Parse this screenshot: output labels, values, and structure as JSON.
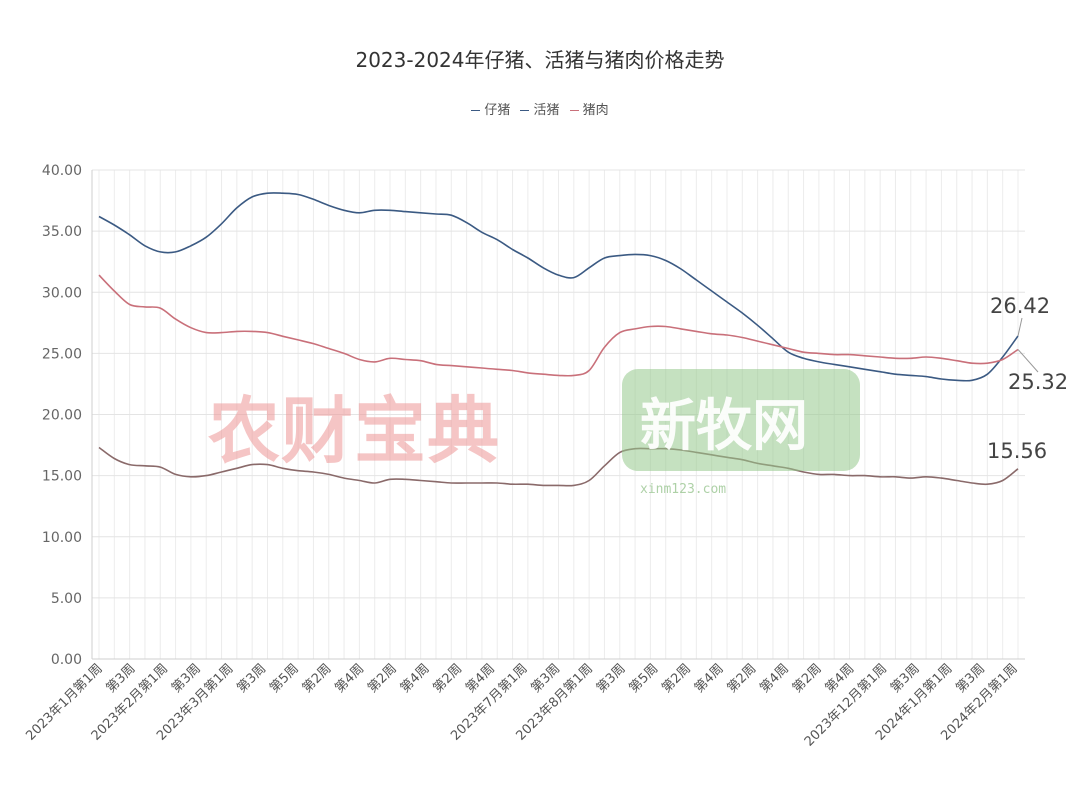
{
  "chart_data": {
    "type": "line",
    "title": "2023-2024年仔猪、活猪与猪肉价格走势",
    "legend": [
      "仔猪",
      "活猪",
      "猪肉"
    ],
    "legend_position": "top-center",
    "grid": true,
    "ylim": [
      0,
      40
    ],
    "y_ticks": [
      "0.00",
      "5.00",
      "10.00",
      "15.00",
      "20.00",
      "25.00",
      "30.00",
      "35.00",
      "40.00"
    ],
    "x_tick_labels": [
      "2023年1月第1周",
      "第3周",
      "2023年2月第1周",
      "第3周",
      "2023年3月第1周",
      "第3周",
      "第5周",
      "第2周",
      "第4周",
      "第2周",
      "第4周",
      "第2周",
      "第4周",
      "2023年7月第1周",
      "第3周",
      "2023年8月第1周",
      "第3周",
      "第5周",
      "第2周",
      "第4周",
      "第2周",
      "第4周",
      "第2周",
      "第4周",
      "2023年12月第1周",
      "第3周",
      "2024年1月第1周",
      "第3周",
      "2024年2月第1周"
    ],
    "series": [
      {
        "name": "仔猪",
        "color": "#3b5a83",
        "values": [
          36.2,
          35.5,
          34.7,
          33.8,
          33.3,
          33.3,
          33.8,
          34.5,
          35.6,
          36.9,
          37.8,
          38.1,
          38.1,
          38.0,
          37.6,
          37.1,
          36.7,
          36.5,
          36.7,
          36.7,
          36.6,
          36.5,
          36.4,
          36.3,
          35.7,
          34.9,
          34.3,
          33.5,
          32.8,
          32.0,
          31.4,
          31.2,
          32.0,
          32.8,
          33.0,
          33.1,
          33.0,
          32.6,
          31.9,
          31.0,
          30.1,
          29.2,
          28.3,
          27.3,
          26.2,
          25.1,
          24.6,
          24.3,
          24.1,
          23.9,
          23.7,
          23.5,
          23.3,
          23.2,
          23.1,
          22.9,
          22.8,
          22.8,
          23.3,
          24.7,
          26.42
        ],
        "end_label": "26.42"
      },
      {
        "name": "活猪",
        "color": "#8a6a6a",
        "values": [
          17.3,
          16.4,
          15.9,
          15.8,
          15.7,
          15.1,
          14.9,
          15.0,
          15.3,
          15.6,
          15.9,
          15.9,
          15.6,
          15.4,
          15.3,
          15.1,
          14.8,
          14.6,
          14.4,
          14.7,
          14.7,
          14.6,
          14.5,
          14.4,
          14.4,
          14.4,
          14.4,
          14.3,
          14.3,
          14.2,
          14.2,
          14.2,
          14.6,
          15.8,
          16.9,
          17.2,
          17.2,
          17.2,
          17.1,
          16.9,
          16.7,
          16.5,
          16.3,
          16.0,
          15.8,
          15.6,
          15.3,
          15.1,
          15.1,
          15.0,
          15.0,
          14.9,
          14.9,
          14.8,
          14.9,
          14.8,
          14.6,
          14.4,
          14.3,
          14.6,
          15.56
        ],
        "end_label": "15.56"
      },
      {
        "name": "猪肉",
        "color": "#c9707a",
        "values": [
          31.4,
          30.1,
          29.0,
          28.8,
          28.7,
          27.8,
          27.1,
          26.7,
          26.7,
          26.8,
          26.8,
          26.7,
          26.4,
          26.1,
          25.8,
          25.4,
          25.0,
          24.5,
          24.3,
          24.6,
          24.5,
          24.4,
          24.1,
          24.0,
          23.9,
          23.8,
          23.7,
          23.6,
          23.4,
          23.3,
          23.2,
          23.2,
          23.6,
          25.5,
          26.7,
          27.0,
          27.2,
          27.2,
          27.0,
          26.8,
          26.6,
          26.5,
          26.3,
          26.0,
          25.7,
          25.4,
          25.1,
          25.0,
          24.9,
          24.9,
          24.8,
          24.7,
          24.6,
          24.6,
          24.7,
          24.6,
          24.4,
          24.2,
          24.2,
          24.5,
          25.32
        ],
        "end_label": "25.32"
      }
    ]
  },
  "watermarks": {
    "left_text": "农财宝典",
    "right_text": "新牧网",
    "right_url": "xinm123.com"
  }
}
